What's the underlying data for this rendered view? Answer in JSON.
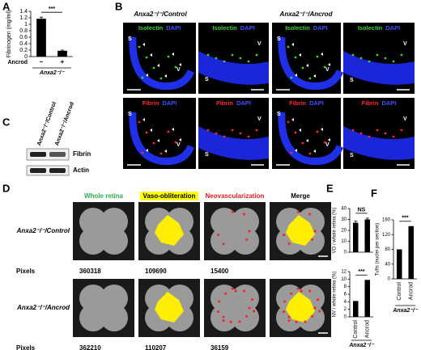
{
  "figure": {
    "panels": [
      "A",
      "B",
      "C",
      "D",
      "E",
      "F"
    ],
    "b": {
      "headers": [
        "Anxa2⁻/⁻/Control",
        "Anxa2⁻/⁻/Ancrod"
      ],
      "stains": [
        [
          "Isolectin",
          "DAPI"
        ],
        [
          "Fibrin",
          "DAPI"
        ]
      ],
      "regions": [
        "S",
        "V"
      ]
    },
    "c": {
      "lanes": [
        "Anxa2⁻/⁻/Control",
        "Anxa2⁻/⁻/Ancrod"
      ],
      "bands": [
        "Fibrin",
        "Actin"
      ]
    },
    "d": {
      "columns": [
        "Whole retina",
        "Vaso-obliteration",
        "Neovascularization",
        "Merge"
      ],
      "pixels_label": "Pixels",
      "rows": [
        {
          "name": "Anxa2⁻/⁻/Control",
          "pixels": [
            360318,
            109690,
            15400
          ]
        },
        {
          "name": "Anxa2⁻/⁻/Ancrod",
          "pixels": [
            362210,
            110207,
            36159
          ]
        }
      ]
    }
  },
  "chart_data": [
    {
      "type": "bar",
      "ylabel": "Fibrinogen (mg/ml)",
      "categories": [
        "–",
        "+"
      ],
      "row_label": "Ancrod",
      "group_label": "Anxa2⁻/⁻",
      "values": [
        1.17,
        0.18
      ],
      "errors": [
        0.05,
        0.02
      ],
      "color": "#000000",
      "ylim": [
        0,
        1.4
      ],
      "yticks": [
        0,
        0.2,
        0.4,
        0.6,
        0.8,
        1,
        1.2,
        1.4
      ],
      "significance": "***"
    },
    {
      "type": "bar",
      "ylabel": "VO / whole retina (%)",
      "values": [
        27,
        30
      ],
      "errors": [
        1.5,
        1.2
      ],
      "color": "#000000",
      "ylim": [
        0,
        40
      ],
      "yticks": [
        0,
        10,
        20,
        30,
        40
      ],
      "significance": "NS"
    },
    {
      "type": "bar",
      "ylabel": "NV / whole retina (%)",
      "categories": [
        "Control",
        "Ancrod"
      ],
      "group_label": "Anxa2⁻/⁻",
      "values": [
        4.2,
        9.8
      ],
      "color": "#000000",
      "ylim": [
        0,
        12
      ],
      "yticks": [
        0,
        2,
        4,
        6,
        8,
        10,
        12
      ],
      "significance": "***"
    },
    {
      "type": "bar",
      "ylabel": "Tufts (nuclei per section)",
      "categories": [
        "Control",
        "Ancrod"
      ],
      "group_label": "Anxa2⁻/⁻",
      "values": [
        80,
        143
      ],
      "color": "#000000",
      "ylim": [
        0,
        160
      ],
      "yticks": [
        0,
        40,
        80,
        120,
        160
      ],
      "significance": "***"
    }
  ]
}
